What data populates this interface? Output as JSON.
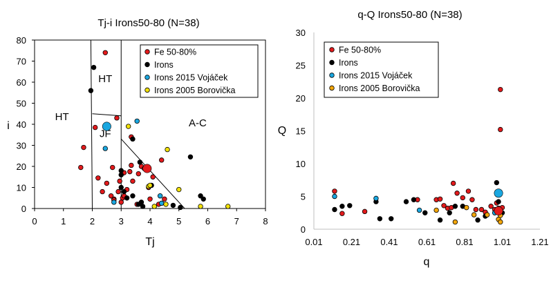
{
  "chart_data": [
    {
      "type": "scatter",
      "title": "Tj-i  Irons50-80 (N=38)",
      "xlabel": "Tj",
      "ylabel": "i",
      "xlim": [
        0,
        8
      ],
      "ylim": [
        0,
        80
      ],
      "xticks": [
        "0",
        "1",
        "2",
        "3",
        "4",
        "5",
        "6",
        "7",
        "8"
      ],
      "yticks": [
        "0",
        "10",
        "20",
        "30",
        "40",
        "50",
        "60",
        "70",
        "80"
      ],
      "region_labels": [
        {
          "text": "HT",
          "x": 0.95,
          "y": 42
        },
        {
          "text": "HT",
          "x": 2.45,
          "y": 60
        },
        {
          "text": "JF",
          "x": 2.45,
          "y": 34
        },
        {
          "text": "A-C",
          "x": 5.65,
          "y": 39
        }
      ],
      "boundaries": [
        [
          [
            1.95,
            80
          ],
          [
            2.0,
            0
          ]
        ],
        [
          [
            3.0,
            80
          ],
          [
            3.0,
            0
          ]
        ],
        [
          [
            2.0,
            45
          ],
          [
            3.0,
            44
          ]
        ],
        [
          [
            3.0,
            33
          ],
          [
            5.2,
            0
          ]
        ]
      ],
      "legend": [
        "Fe 50-80%",
        "Irons",
        "Irons 2015 Vojáček",
        "Irons 2005 Borovička"
      ],
      "series": [
        {
          "name": "Fe 50-80%",
          "color": "#e31a1c",
          "points": [
            [
              2.45,
              74
            ],
            [
              1.7,
              29
            ],
            [
              1.6,
              19.5
            ],
            [
              2.1,
              38.5
            ],
            [
              2.2,
              14.5
            ],
            [
              2.35,
              8
            ],
            [
              2.5,
              12
            ],
            [
              2.65,
              6
            ],
            [
              2.7,
              19.5
            ],
            [
              2.75,
              4.5
            ],
            [
              2.85,
              43
            ],
            [
              2.9,
              8
            ],
            [
              2.95,
              13
            ],
            [
              3.0,
              3
            ],
            [
              3.05,
              5
            ],
            [
              3.1,
              17
            ],
            [
              3.2,
              9
            ],
            [
              3.3,
              17.5
            ],
            [
              3.35,
              20.5
            ],
            [
              3.4,
              13
            ],
            [
              3.55,
              2
            ],
            [
              3.6,
              16.5
            ],
            [
              3.7,
              20
            ],
            [
              3.8,
              19
            ],
            [
              3.95,
              10
            ],
            [
              4.0,
              4.5
            ],
            [
              4.1,
              15
            ],
            [
              4.3,
              2
            ],
            [
              4.4,
              23
            ],
            [
              4.5,
              4.5
            ],
            [
              3.35,
              34
            ],
            [
              2.75,
              4
            ],
            [
              3.1,
              6
            ]
          ]
        },
        {
          "name": "Irons",
          "color": "#000000",
          "points": [
            [
              2.05,
              67
            ],
            [
              1.95,
              56
            ],
            [
              3.4,
              33
            ],
            [
              3.0,
              18
            ],
            [
              3.0,
              16
            ],
            [
              3.0,
              10
            ],
            [
              3.1,
              8
            ],
            [
              3.4,
              6
            ],
            [
              3.2,
              5
            ],
            [
              3.6,
              2
            ],
            [
              3.65,
              22
            ],
            [
              3.75,
              1
            ],
            [
              4.8,
              1.5
            ],
            [
              5.05,
              0.5
            ],
            [
              5.4,
              24.5
            ],
            [
              5.75,
              6
            ],
            [
              5.85,
              4.5
            ],
            [
              3.7,
              3
            ],
            [
              4.05,
              11
            ]
          ]
        },
        {
          "name": "Irons 2015 Vojáček",
          "color": "#1aa7e0",
          "points": [
            [
              3.55,
              41.5
            ],
            [
              2.45,
              28.5
            ],
            [
              2.75,
              3
            ],
            [
              4.4,
              2.5
            ],
            [
              4.35,
              6
            ]
          ]
        },
        {
          "name": "Irons 2005 Borovička",
          "color": "#f2e10a",
          "points": [
            [
              3.25,
              39
            ],
            [
              4.6,
              28
            ],
            [
              3.95,
              10.5
            ],
            [
              4.0,
              11
            ],
            [
              5.0,
              9
            ],
            [
              4.55,
              2
            ],
            [
              5.75,
              1
            ],
            [
              6.7,
              1
            ],
            [
              4.15,
              1
            ]
          ]
        }
      ],
      "highlights": [
        {
          "color": "#1aa7e0",
          "x": 2.5,
          "y": 39
        },
        {
          "color": "#e31a1c",
          "x": 3.9,
          "y": 19
        }
      ]
    },
    {
      "type": "scatter",
      "title": "q-Q  Irons50-80 (N=38)",
      "xlabel": "q",
      "ylabel": "Q",
      "xlim": [
        0.01,
        1.21
      ],
      "ylim": [
        0,
        30
      ],
      "xticks": [
        "0.01",
        "0.21",
        "0.41",
        "0.61",
        "0.81",
        "1.01",
        "1.21"
      ],
      "yticks": [
        "0",
        "5",
        "10",
        "15",
        "20",
        "25",
        "30"
      ],
      "legend": [
        "Fe 50-80%",
        "Irons",
        "Irons 2015 Vojáček",
        "Irons 2005 Borovička"
      ],
      "series": [
        {
          "name": "Fe 50-80%",
          "color": "#e31a1c",
          "points": [
            [
              0.12,
              5.8
            ],
            [
              0.16,
              2.4
            ],
            [
              0.28,
              2.7
            ],
            [
              0.56,
              4.5
            ],
            [
              0.66,
              4.5
            ],
            [
              0.7,
              3.6
            ],
            [
              0.72,
              3.2
            ],
            [
              0.75,
              7
            ],
            [
              0.77,
              5.5
            ],
            [
              0.8,
              4.8
            ],
            [
              0.85,
              4.5
            ],
            [
              0.87,
              3
            ],
            [
              0.9,
              3
            ],
            [
              0.92,
              2.6
            ],
            [
              0.95,
              3.5
            ],
            [
              0.97,
              3
            ],
            [
              0.98,
              4
            ],
            [
              0.99,
              3.2
            ],
            [
              1.0,
              21.3
            ],
            [
              1.0,
              15.2
            ],
            [
              1.01,
              3.3
            ],
            [
              0.74,
              3.3
            ],
            [
              0.68,
              4.6
            ],
            [
              0.83,
              5.8
            ]
          ]
        },
        {
          "name": "Irons",
          "color": "#000000",
          "points": [
            [
              0.12,
              3
            ],
            [
              0.16,
              3.5
            ],
            [
              0.2,
              3.6
            ],
            [
              0.34,
              4.2
            ],
            [
              0.36,
              1.6
            ],
            [
              0.42,
              1.6
            ],
            [
              0.5,
              4.2
            ],
            [
              0.54,
              4.5
            ],
            [
              0.6,
              2.5
            ],
            [
              0.68,
              1.4
            ],
            [
              0.73,
              2.5
            ],
            [
              0.8,
              3.5
            ],
            [
              0.88,
              1.4
            ],
            [
              0.92,
              2
            ],
            [
              0.98,
              7.1
            ],
            [
              0.99,
              4.2
            ],
            [
              1.01,
              2.5
            ],
            [
              0.76,
              3.5
            ]
          ]
        },
        {
          "name": "Irons 2015 Vojáček",
          "color": "#1aa7e0",
          "points": [
            [
              0.12,
              5
            ],
            [
              0.34,
              4.7
            ],
            [
              0.57,
              2.9
            ],
            [
              0.97,
              2.5
            ]
          ]
        },
        {
          "name": "Irons 2005 Borovička",
          "color": "#f2a60a",
          "points": [
            [
              0.66,
              2.9
            ],
            [
              0.76,
              1.1
            ],
            [
              0.82,
              3.3
            ],
            [
              0.86,
              2.2
            ],
            [
              0.93,
              2.2
            ],
            [
              0.99,
              1.5
            ],
            [
              1.0,
              1.1
            ],
            [
              1.0,
              2.1
            ]
          ]
        }
      ],
      "highlights": [
        {
          "color": "#1aa7e0",
          "x": 0.99,
          "y": 5.5
        },
        {
          "color": "#e31a1c",
          "x": 0.99,
          "y": 2.8
        }
      ]
    }
  ]
}
